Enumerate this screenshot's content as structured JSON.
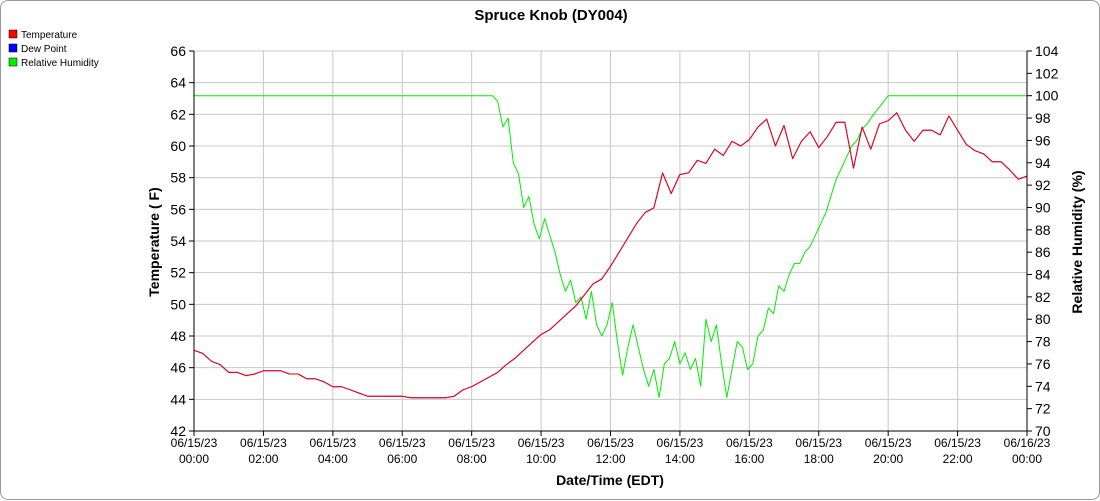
{
  "chart_data": {
    "type": "line",
    "title": "Spruce Knob (DY004)",
    "xlabel": "Date/Time (EDT)",
    "ylabel": "Temperature ( F)",
    "y2label": "Relative Humidity (%)",
    "ylim": [
      42,
      66
    ],
    "y2lim": [
      70,
      104
    ],
    "yticks": [
      42,
      44,
      46,
      48,
      50,
      52,
      54,
      56,
      58,
      60,
      62,
      64,
      66
    ],
    "y2ticks": [
      70,
      72,
      74,
      76,
      78,
      80,
      82,
      84,
      86,
      88,
      90,
      92,
      94,
      96,
      98,
      100,
      102,
      104
    ],
    "xlim_hours": [
      0,
      24
    ],
    "x_unit": "hours since 06/15/23 00:00",
    "xticks": [
      {
        "hour": 0,
        "line1": "06/15/23",
        "line2": "00:00"
      },
      {
        "hour": 2,
        "line1": "06/15/23",
        "line2": "02:00"
      },
      {
        "hour": 4,
        "line1": "06/15/23",
        "line2": "04:00"
      },
      {
        "hour": 6,
        "line1": "06/15/23",
        "line2": "06:00"
      },
      {
        "hour": 8,
        "line1": "06/15/23",
        "line2": "08:00"
      },
      {
        "hour": 10,
        "line1": "06/15/23",
        "line2": "10:00"
      },
      {
        "hour": 12,
        "line1": "06/15/23",
        "line2": "12:00"
      },
      {
        "hour": 14,
        "line1": "06/15/23",
        "line2": "14:00"
      },
      {
        "hour": 16,
        "line1": "06/15/23",
        "line2": "16:00"
      },
      {
        "hour": 18,
        "line1": "06/15/23",
        "line2": "18:00"
      },
      {
        "hour": 20,
        "line1": "06/15/23",
        "line2": "20:00"
      },
      {
        "hour": 22,
        "line1": "06/15/23",
        "line2": "22:00"
      },
      {
        "hour": 24,
        "line1": "06/16/23",
        "line2": "00:00"
      }
    ],
    "grid": true,
    "legend_position": "top-left",
    "series": [
      {
        "name": "Temperature",
        "color": "#ff0000",
        "axis": "left",
        "points": [
          [
            0.0,
            47.1
          ],
          [
            0.25,
            46.9
          ],
          [
            0.5,
            46.4
          ],
          [
            0.75,
            46.2
          ],
          [
            1.0,
            45.7
          ],
          [
            1.25,
            45.7
          ],
          [
            1.5,
            45.5
          ],
          [
            1.75,
            45.6
          ],
          [
            2.0,
            45.8
          ],
          [
            2.25,
            45.8
          ],
          [
            2.5,
            45.8
          ],
          [
            2.75,
            45.6
          ],
          [
            3.0,
            45.6
          ],
          [
            3.25,
            45.3
          ],
          [
            3.5,
            45.3
          ],
          [
            3.75,
            45.1
          ],
          [
            4.0,
            44.8
          ],
          [
            4.25,
            44.8
          ],
          [
            4.5,
            44.6
          ],
          [
            4.75,
            44.4
          ],
          [
            5.0,
            44.2
          ],
          [
            5.25,
            44.2
          ],
          [
            5.5,
            44.2
          ],
          [
            5.75,
            44.2
          ],
          [
            6.0,
            44.2
          ],
          [
            6.25,
            44.1
          ],
          [
            6.5,
            44.1
          ],
          [
            6.75,
            44.1
          ],
          [
            7.0,
            44.1
          ],
          [
            7.25,
            44.1
          ],
          [
            7.5,
            44.2
          ],
          [
            7.75,
            44.6
          ],
          [
            8.0,
            44.8
          ],
          [
            8.25,
            45.1
          ],
          [
            8.5,
            45.4
          ],
          [
            8.75,
            45.7
          ],
          [
            9.0,
            46.2
          ],
          [
            9.25,
            46.6
          ],
          [
            9.5,
            47.1
          ],
          [
            9.75,
            47.6
          ],
          [
            10.0,
            48.1
          ],
          [
            10.25,
            48.4
          ],
          [
            10.5,
            48.9
          ],
          [
            10.75,
            49.4
          ],
          [
            11.0,
            49.9
          ],
          [
            11.25,
            50.6
          ],
          [
            11.5,
            51.3
          ],
          [
            11.75,
            51.6
          ],
          [
            12.0,
            52.4
          ],
          [
            12.25,
            53.3
          ],
          [
            12.5,
            54.2
          ],
          [
            12.75,
            55.1
          ],
          [
            13.0,
            55.8
          ],
          [
            13.25,
            56.1
          ],
          [
            13.5,
            58.3
          ],
          [
            13.75,
            57.0
          ],
          [
            14.0,
            58.2
          ],
          [
            14.25,
            58.3
          ],
          [
            14.5,
            59.1
          ],
          [
            14.75,
            58.9
          ],
          [
            15.0,
            59.8
          ],
          [
            15.25,
            59.4
          ],
          [
            15.5,
            60.3
          ],
          [
            15.75,
            60.0
          ],
          [
            16.0,
            60.4
          ],
          [
            16.25,
            61.2
          ],
          [
            16.5,
            61.7
          ],
          [
            16.75,
            60.0
          ],
          [
            17.0,
            61.3
          ],
          [
            17.25,
            59.2
          ],
          [
            17.5,
            60.3
          ],
          [
            17.75,
            60.9
          ],
          [
            18.0,
            59.9
          ],
          [
            18.25,
            60.6
          ],
          [
            18.5,
            61.5
          ],
          [
            18.75,
            61.5
          ],
          [
            19.0,
            58.6
          ],
          [
            19.25,
            61.2
          ],
          [
            19.5,
            59.8
          ],
          [
            19.75,
            61.4
          ],
          [
            20.0,
            61.6
          ],
          [
            20.25,
            62.1
          ],
          [
            20.5,
            61.0
          ],
          [
            20.75,
            60.3
          ],
          [
            21.0,
            61.0
          ],
          [
            21.25,
            61.0
          ],
          [
            21.5,
            60.7
          ],
          [
            21.75,
            61.9
          ],
          [
            22.0,
            61.0
          ],
          [
            22.25,
            60.1
          ],
          [
            22.5,
            59.7
          ],
          [
            22.75,
            59.5
          ],
          [
            23.0,
            59.0
          ],
          [
            23.25,
            59.0
          ],
          [
            23.5,
            58.5
          ],
          [
            23.75,
            57.9
          ],
          [
            24.0,
            58.1
          ]
        ]
      },
      {
        "name": "Dew Point",
        "color": "#0000ff",
        "axis": "left",
        "points": [
          [
            0.0,
            47.1
          ],
          [
            0.25,
            46.9
          ],
          [
            0.5,
            46.4
          ],
          [
            0.75,
            46.2
          ],
          [
            1.0,
            45.7
          ],
          [
            1.25,
            45.7
          ],
          [
            1.5,
            45.5
          ],
          [
            1.75,
            45.6
          ],
          [
            2.0,
            45.8
          ],
          [
            2.25,
            45.8
          ],
          [
            2.5,
            45.8
          ],
          [
            2.75,
            45.6
          ],
          [
            3.0,
            45.6
          ],
          [
            3.25,
            45.3
          ],
          [
            3.5,
            45.3
          ],
          [
            3.75,
            45.1
          ],
          [
            4.0,
            44.8
          ],
          [
            4.25,
            44.8
          ],
          [
            4.5,
            44.6
          ],
          [
            4.75,
            44.4
          ],
          [
            5.0,
            44.2
          ],
          [
            5.25,
            44.2
          ],
          [
            5.5,
            44.2
          ],
          [
            5.75,
            44.2
          ],
          [
            6.0,
            44.2
          ],
          [
            6.25,
            44.1
          ],
          [
            6.5,
            44.1
          ],
          [
            6.75,
            44.1
          ],
          [
            7.0,
            44.1
          ],
          [
            7.25,
            44.1
          ],
          [
            7.5,
            44.2
          ],
          [
            7.75,
            44.6
          ],
          [
            8.0,
            44.8
          ],
          [
            8.25,
            45.1
          ],
          [
            8.5,
            45.4
          ],
          [
            8.75,
            45.7
          ],
          [
            9.0,
            46.2
          ],
          [
            9.25,
            46.6
          ],
          [
            9.5,
            47.1
          ],
          [
            9.75,
            47.6
          ],
          [
            10.0,
            48.1
          ],
          [
            10.25,
            48.4
          ],
          [
            10.5,
            48.9
          ],
          [
            10.75,
            49.4
          ],
          [
            11.0,
            49.9
          ],
          [
            11.25,
            50.6
          ],
          [
            11.5,
            51.3
          ],
          [
            11.75,
            51.6
          ],
          [
            12.0,
            52.4
          ],
          [
            12.25,
            53.3
          ],
          [
            12.5,
            54.2
          ],
          [
            12.75,
            55.1
          ],
          [
            13.0,
            55.8
          ],
          [
            13.25,
            56.1
          ],
          [
            13.5,
            58.3
          ],
          [
            13.75,
            57.0
          ],
          [
            14.0,
            58.2
          ],
          [
            14.25,
            58.3
          ],
          [
            14.5,
            59.1
          ],
          [
            14.75,
            58.9
          ],
          [
            15.0,
            59.8
          ],
          [
            15.25,
            59.4
          ],
          [
            15.5,
            60.3
          ],
          [
            15.75,
            60.0
          ],
          [
            16.0,
            60.4
          ],
          [
            16.25,
            61.2
          ],
          [
            16.5,
            61.7
          ],
          [
            16.75,
            60.0
          ],
          [
            17.0,
            61.3
          ],
          [
            17.25,
            59.2
          ],
          [
            17.5,
            60.3
          ],
          [
            17.75,
            60.9
          ],
          [
            18.0,
            59.9
          ],
          [
            18.25,
            60.6
          ],
          [
            18.5,
            61.5
          ],
          [
            18.75,
            61.5
          ],
          [
            19.0,
            58.6
          ],
          [
            19.25,
            61.2
          ],
          [
            19.5,
            59.8
          ],
          [
            19.75,
            61.4
          ],
          [
            20.0,
            61.6
          ],
          [
            20.25,
            62.1
          ],
          [
            20.5,
            61.0
          ],
          [
            20.75,
            60.3
          ],
          [
            21.0,
            61.0
          ],
          [
            21.25,
            61.0
          ],
          [
            21.5,
            60.7
          ],
          [
            21.75,
            61.9
          ],
          [
            22.0,
            61.0
          ],
          [
            22.25,
            60.1
          ],
          [
            22.5,
            59.7
          ],
          [
            22.75,
            59.5
          ],
          [
            23.0,
            59.0
          ],
          [
            23.25,
            59.0
          ],
          [
            23.5,
            58.5
          ],
          [
            23.75,
            57.9
          ],
          [
            24.0,
            58.1
          ]
        ]
      },
      {
        "name": "Relative Humidity",
        "color": "#00ee00",
        "axis": "right",
        "points": [
          [
            0.0,
            100
          ],
          [
            8.6,
            100
          ],
          [
            8.75,
            99.5
          ],
          [
            8.9,
            97.2
          ],
          [
            9.05,
            98.0
          ],
          [
            9.2,
            94.0
          ],
          [
            9.35,
            93.0
          ],
          [
            9.5,
            90.0
          ],
          [
            9.65,
            91.0
          ],
          [
            9.8,
            88.5
          ],
          [
            9.95,
            87.2
          ],
          [
            10.1,
            89.0
          ],
          [
            10.25,
            87.5
          ],
          [
            10.4,
            86.0
          ],
          [
            10.55,
            84.0
          ],
          [
            10.7,
            82.5
          ],
          [
            10.85,
            83.5
          ],
          [
            11.0,
            81.5
          ],
          [
            11.15,
            82.0
          ],
          [
            11.3,
            80.0
          ],
          [
            11.45,
            82.5
          ],
          [
            11.6,
            79.5
          ],
          [
            11.75,
            78.5
          ],
          [
            11.9,
            79.5
          ],
          [
            12.05,
            81.5
          ],
          [
            12.2,
            78.0
          ],
          [
            12.35,
            75.0
          ],
          [
            12.5,
            77.5
          ],
          [
            12.65,
            79.5
          ],
          [
            12.8,
            77.5
          ],
          [
            12.95,
            75.5
          ],
          [
            13.1,
            74.0
          ],
          [
            13.25,
            75.5
          ],
          [
            13.4,
            73.0
          ],
          [
            13.55,
            76.0
          ],
          [
            13.7,
            76.5
          ],
          [
            13.85,
            78.0
          ],
          [
            14.0,
            76.0
          ],
          [
            14.15,
            77.0
          ],
          [
            14.3,
            75.5
          ],
          [
            14.45,
            76.5
          ],
          [
            14.6,
            74.0
          ],
          [
            14.75,
            80.0
          ],
          [
            14.9,
            78.0
          ],
          [
            15.05,
            79.5
          ],
          [
            15.2,
            76.0
          ],
          [
            15.35,
            73.0
          ],
          [
            15.5,
            75.5
          ],
          [
            15.65,
            78.0
          ],
          [
            15.8,
            77.5
          ],
          [
            15.95,
            75.5
          ],
          [
            16.1,
            76.0
          ],
          [
            16.25,
            78.5
          ],
          [
            16.4,
            79.0
          ],
          [
            16.55,
            81.0
          ],
          [
            16.7,
            80.5
          ],
          [
            16.85,
            83.0
          ],
          [
            17.0,
            82.5
          ],
          [
            17.15,
            84.0
          ],
          [
            17.3,
            85.0
          ],
          [
            17.45,
            85.0
          ],
          [
            17.6,
            86.0
          ],
          [
            17.75,
            86.5
          ],
          [
            17.9,
            87.5
          ],
          [
            18.05,
            88.5
          ],
          [
            18.2,
            89.5
          ],
          [
            18.35,
            91.0
          ],
          [
            18.5,
            92.5
          ],
          [
            18.65,
            93.5
          ],
          [
            18.8,
            94.5
          ],
          [
            18.95,
            95.5
          ],
          [
            19.1,
            96.0
          ],
          [
            19.25,
            97.0
          ],
          [
            19.4,
            97.5
          ],
          [
            19.55,
            98.2
          ],
          [
            19.7,
            98.8
          ],
          [
            19.85,
            99.4
          ],
          [
            20.0,
            100
          ],
          [
            24.0,
            100
          ]
        ]
      }
    ]
  }
}
